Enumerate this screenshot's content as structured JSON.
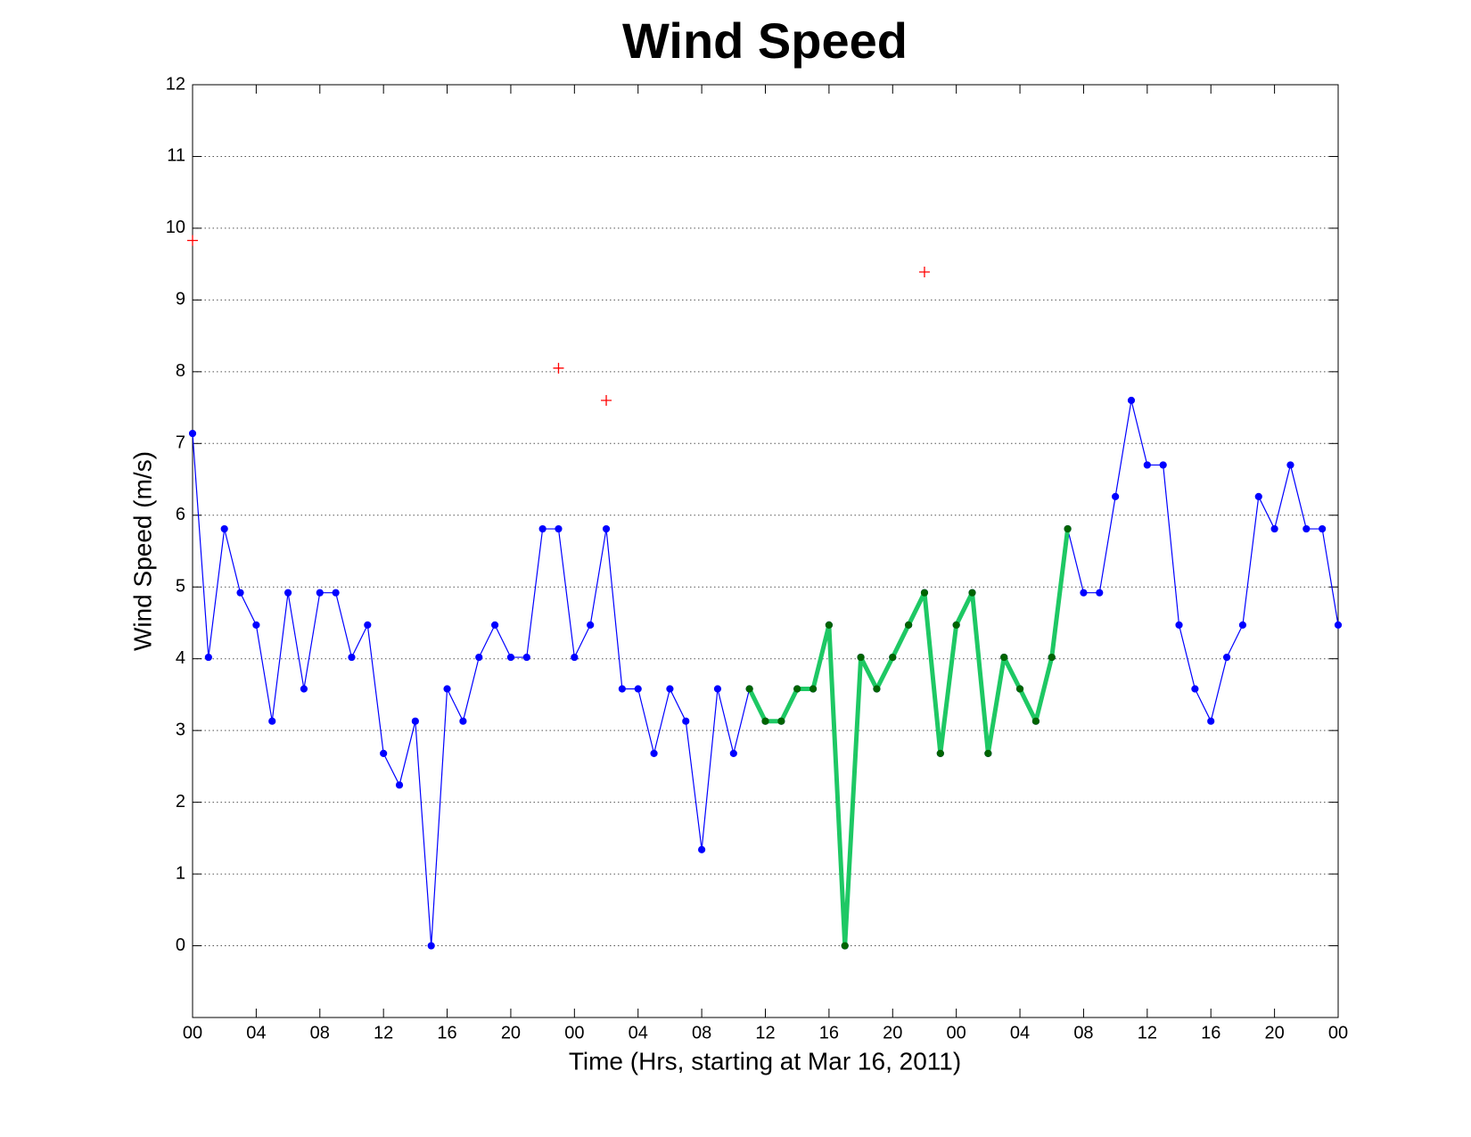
{
  "chart_data": {
    "type": "line",
    "title": "Wind Speed",
    "x_label": "Time (Hrs, starting at Mar 16, 2011)",
    "y_label": "Wind Speed (m/s)",
    "xlim": [
      0,
      72
    ],
    "xticks": [
      {
        "value": 0,
        "label": "00"
      },
      {
        "value": 4,
        "label": "04"
      },
      {
        "value": 8,
        "label": "08"
      },
      12,
      16,
      20,
      {
        "value": 24,
        "label": "00"
      },
      {
        "value": 28,
        "label": "04"
      },
      {
        "value": 32,
        "label": "08"
      },
      {
        "value": 36,
        "label": "12"
      },
      {
        "value": 40,
        "label": "16"
      },
      {
        "value": 44,
        "label": "20"
      },
      {
        "value": 48,
        "label": "00"
      },
      {
        "value": 52,
        "label": "04"
      },
      {
        "value": 56,
        "label": "08"
      },
      {
        "value": 60,
        "label": "12"
      },
      {
        "value": 64,
        "label": "16"
      },
      {
        "value": 68,
        "label": "20"
      },
      {
        "value": 72,
        "label": "00"
      }
    ],
    "ylim": [
      -1,
      12
    ],
    "yticks": [
      0,
      1,
      2,
      3,
      4,
      5,
      6,
      7,
      8,
      9,
      10,
      11,
      12
    ],
    "grid": "y",
    "series": [
      {
        "color": "#0000ff",
        "marker": "o",
        "line": true,
        "x": [
          0,
          1,
          2,
          3,
          4,
          5,
          6,
          7,
          8,
          9,
          10,
          11,
          12,
          13,
          14,
          15,
          16,
          17,
          18,
          19,
          20,
          21,
          22,
          23,
          24,
          25,
          26,
          27,
          28,
          29,
          30,
          31,
          32,
          33,
          34,
          35,
          36,
          37,
          38,
          39,
          40,
          41,
          42,
          43,
          44,
          45,
          46,
          47,
          48,
          49,
          50,
          51,
          52,
          53,
          54,
          55,
          56,
          57,
          58,
          59,
          60,
          61,
          62,
          63,
          64,
          65,
          66,
          67,
          68,
          69,
          70,
          71,
          72
        ],
        "values": [
          7.14,
          4.02,
          5.81,
          4.92,
          4.47,
          3.13,
          4.92,
          3.58,
          4.92,
          4.92,
          4.02,
          4.47,
          2.68,
          2.24,
          3.13,
          0,
          3.58,
          3.13,
          4.02,
          4.47,
          4.02,
          4.02,
          5.81,
          5.81,
          4.02,
          4.47,
          5.81,
          3.58,
          3.58,
          2.68,
          3.58,
          3.13,
          1.34,
          3.58,
          2.68,
          3.58,
          3.13,
          3.13,
          3.58,
          3.58,
          4.47,
          0,
          4.02,
          3.58,
          4.02,
          4.47,
          4.92,
          2.68,
          4.47,
          4.92,
          2.68,
          4.02,
          3.58,
          3.13,
          4.02,
          5.81,
          4.92,
          4.92,
          6.26,
          7.6,
          6.7,
          6.7,
          4.47,
          3.58,
          3.13,
          4.02,
          4.47,
          6.26,
          5.81,
          6.7,
          5.81,
          5.81,
          4.47
        ]
      },
      {
        "color": "#1ec864",
        "marker_color": "#006400",
        "marker": "o",
        "line": true,
        "x": [
          35,
          36,
          37,
          38,
          39,
          40,
          41,
          42,
          43,
          44,
          45,
          46,
          47,
          48,
          49,
          50,
          51,
          52,
          53,
          54,
          55
        ],
        "values": [
          3.58,
          3.13,
          3.13,
          3.58,
          3.58,
          4.47,
          0,
          4.02,
          3.58,
          4.02,
          4.47,
          4.92,
          2.68,
          4.47,
          4.92,
          2.68,
          4.02,
          3.58,
          3.13,
          4.02,
          5.81
        ]
      },
      {
        "color": "#ff0000",
        "marker": "+",
        "line": false,
        "x": [
          0,
          23,
          26,
          46
        ],
        "values": [
          9.83,
          8.05,
          7.6,
          9.39
        ]
      }
    ]
  }
}
